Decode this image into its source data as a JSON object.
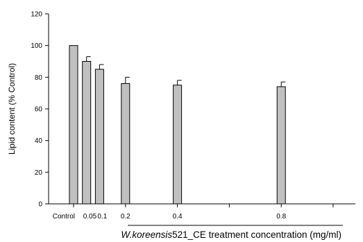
{
  "chart_data": {
    "type": "bar",
    "title": "",
    "ylabel": "Lipid content (% Control)",
    "xlabel_italic": "W.koreensis",
    "xlabel_rest": "521_CE treatment concentration (mg/ml)",
    "ylim": [
      0,
      120
    ],
    "yticks": [
      0,
      20,
      40,
      60,
      80,
      100,
      120
    ],
    "x_scale_max": 1.0,
    "categories": [
      "Control",
      "0.05",
      "0.1",
      "0.2",
      "0.4",
      "0.8"
    ],
    "x_positions": [
      0,
      0.05,
      0.1,
      0.2,
      0.4,
      0.8
    ],
    "values": [
      100,
      90,
      85,
      76,
      75,
      74
    ],
    "error_bars": [
      0,
      3,
      3,
      4,
      3,
      3
    ],
    "bar_color": "#c0c0c0",
    "grid": false,
    "legend": "none"
  }
}
